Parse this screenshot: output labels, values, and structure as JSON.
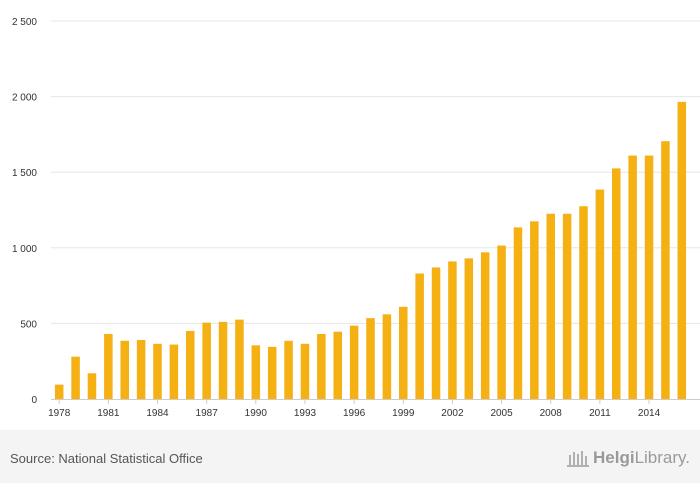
{
  "chart_data": {
    "type": "bar",
    "title": "",
    "xlabel": "",
    "ylabel": "",
    "ylim": [
      0,
      2500
    ],
    "yticks": [
      0,
      500,
      1000,
      1500,
      2000,
      2500
    ],
    "ytick_labels": [
      "0",
      "500",
      "1 000",
      "1 500",
      "2 000",
      "2 500"
    ],
    "categories": [
      "1978",
      "1979",
      "1980",
      "1981",
      "1982",
      "1983",
      "1984",
      "1985",
      "1986",
      "1987",
      "1988",
      "1989",
      "1990",
      "1991",
      "1992",
      "1993",
      "1994",
      "1995",
      "1996",
      "1997",
      "1998",
      "1999",
      "2000",
      "2001",
      "2002",
      "2003",
      "2004",
      "2005",
      "2006",
      "2007",
      "2008",
      "2009",
      "2010",
      "2011",
      "2012",
      "2013",
      "2014",
      "2015",
      "2016"
    ],
    "xtick_labels": [
      "1978",
      "1981",
      "1984",
      "1987",
      "1990",
      "1993",
      "1996",
      "1999",
      "2002",
      "2005",
      "2008",
      "2011",
      "2014"
    ],
    "values": [
      95,
      280,
      170,
      430,
      385,
      390,
      365,
      360,
      450,
      505,
      510,
      525,
      355,
      345,
      385,
      365,
      430,
      445,
      485,
      535,
      560,
      610,
      830,
      870,
      910,
      930,
      970,
      1015,
      1135,
      1175,
      1225,
      1225,
      1275,
      1385,
      1525,
      1610,
      1610,
      1705,
      1965
    ],
    "bar_color": "#f5b014",
    "grid": true
  },
  "footer": {
    "source": "Source: National Statistical Office",
    "brand_part1": "Helgi",
    "brand_part2": "Library."
  }
}
